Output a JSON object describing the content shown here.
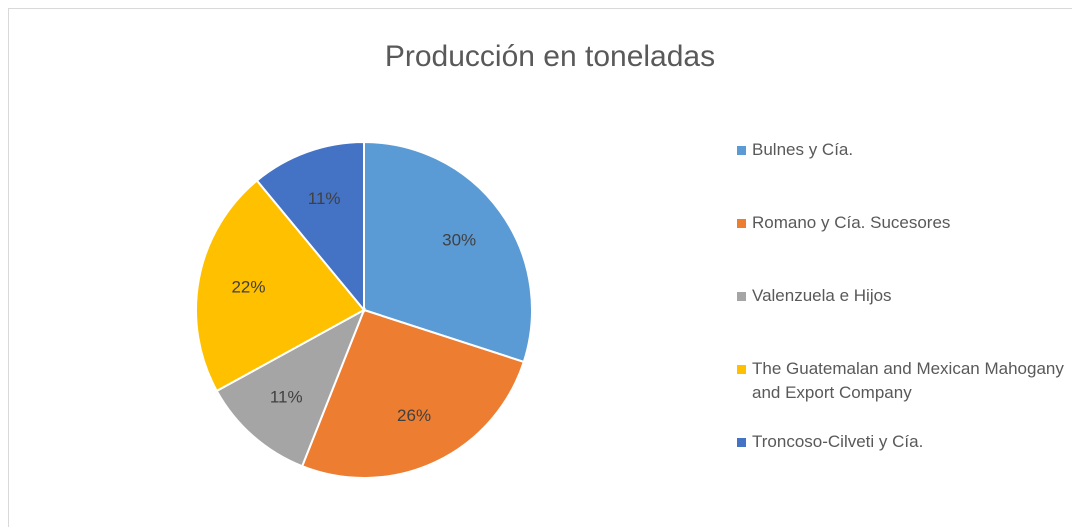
{
  "chart_data": {
    "type": "pie",
    "title": "Producción en toneladas",
    "categories": [
      "Bulnes y Cía.",
      "Romano y Cía. Sucesores",
      "Valenzuela e Hijos",
      "The Guatemalan and Mexican Mahogany and Export Company",
      "Troncoso-Cilveti y Cía."
    ],
    "values": [
      30,
      26,
      11,
      22,
      11
    ],
    "value_labels": [
      "30%",
      "26%",
      "11%",
      "22%",
      "11%"
    ],
    "colors": [
      "#5b9bd5",
      "#ed7d31",
      "#a5a5a5",
      "#ffc000",
      "#4472c4"
    ],
    "legend": "right"
  }
}
